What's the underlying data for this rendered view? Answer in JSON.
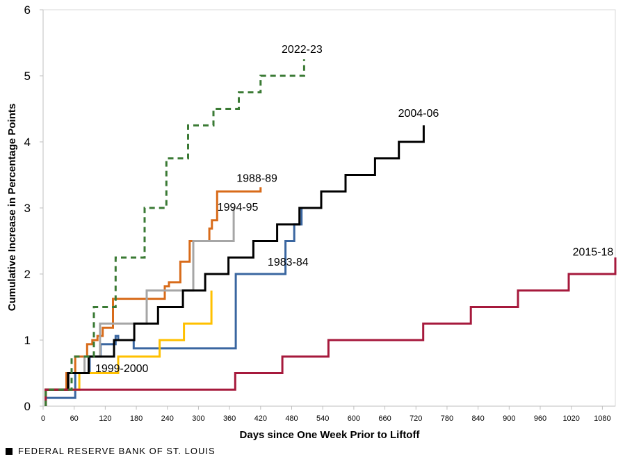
{
  "chart_data": {
    "type": "line",
    "title": "",
    "xlabel": "Days since One Week Prior to Liftoff",
    "ylabel": "Cumulative Increase in Percentage Points",
    "xlim": [
      0,
      1105
    ],
    "ylim": [
      0,
      6
    ],
    "xticks": [
      0,
      60,
      120,
      180,
      240,
      300,
      360,
      420,
      480,
      540,
      600,
      660,
      720,
      780,
      840,
      900,
      960,
      1020,
      1080
    ],
    "yticks": [
      0,
      1,
      2,
      3,
      4,
      5,
      6
    ],
    "grid": false,
    "series": [
      {
        "name": "1983-84",
        "color": "#3a66a0",
        "dashed": false,
        "label": {
          "text": "1983-84",
          "x": 473,
          "y": 2.19
        },
        "points": [
          [
            5,
            0
          ],
          [
            5,
            0.125
          ],
          [
            62,
            0.125
          ],
          [
            62,
            0.5
          ],
          [
            90,
            0.5
          ],
          [
            90,
            0.75
          ],
          [
            111,
            0.75
          ],
          [
            111,
            0.9375
          ],
          [
            140,
            0.9375
          ],
          [
            140,
            1.0625
          ],
          [
            145,
            1.0625
          ],
          [
            145,
            1.0
          ],
          [
            175,
            1.0
          ],
          [
            175,
            0.875
          ],
          [
            372,
            0.875
          ],
          [
            372,
            2.0
          ],
          [
            468,
            2.0
          ],
          [
            468,
            2.5
          ],
          [
            485,
            2.5
          ],
          [
            485,
            2.75
          ],
          [
            499,
            2.75
          ],
          [
            499,
            3.0
          ],
          [
            503,
            3.0
          ]
        ]
      },
      {
        "name": "1988-89",
        "color": "#d86b1a",
        "dashed": false,
        "label": {
          "text": "1988-89",
          "x": 413,
          "y": 3.46
        },
        "points": [
          [
            5,
            0
          ],
          [
            5,
            0.25
          ],
          [
            45,
            0.25
          ],
          [
            45,
            0.5
          ],
          [
            62,
            0.5
          ],
          [
            62,
            0.75
          ],
          [
            85,
            0.75
          ],
          [
            85,
            0.9375
          ],
          [
            95,
            0.9375
          ],
          [
            95,
            1.0
          ],
          [
            105,
            1.0
          ],
          [
            105,
            1.0625
          ],
          [
            115,
            1.0625
          ],
          [
            115,
            1.1875
          ],
          [
            135,
            1.1875
          ],
          [
            135,
            1.625
          ],
          [
            235,
            1.625
          ],
          [
            235,
            1.8125
          ],
          [
            243,
            1.8125
          ],
          [
            243,
            1.875
          ],
          [
            265,
            1.875
          ],
          [
            265,
            2.1875
          ],
          [
            283,
            2.1875
          ],
          [
            283,
            2.5
          ],
          [
            321,
            2.5
          ],
          [
            321,
            2.6875
          ],
          [
            326,
            2.6875
          ],
          [
            326,
            2.8125
          ],
          [
            336,
            2.8125
          ],
          [
            336,
            3.25
          ],
          [
            420,
            3.25
          ],
          [
            420,
            3.3125
          ]
        ]
      },
      {
        "name": "1994-95",
        "color": "#a6a6a6",
        "dashed": false,
        "label": {
          "text": "1994-95",
          "x": 376,
          "y": 3.02
        },
        "points": [
          [
            5,
            0
          ],
          [
            5,
            0.25
          ],
          [
            50,
            0.25
          ],
          [
            50,
            0.5
          ],
          [
            80,
            0.5
          ],
          [
            80,
            0.75
          ],
          [
            110,
            0.75
          ],
          [
            110,
            1.25
          ],
          [
            200,
            1.25
          ],
          [
            200,
            1.75
          ],
          [
            290,
            1.75
          ],
          [
            290,
            2.5
          ],
          [
            368,
            2.5
          ],
          [
            368,
            3.0
          ]
        ]
      },
      {
        "name": "1999-2000",
        "color": "#ffc000",
        "dashed": false,
        "label": {
          "text": "1999-2000",
          "x": 152,
          "y": 0.58
        },
        "points": [
          [
            5,
            0
          ],
          [
            5,
            0.25
          ],
          [
            70,
            0.25
          ],
          [
            70,
            0.5
          ],
          [
            145,
            0.5
          ],
          [
            145,
            0.75
          ],
          [
            225,
            0.75
          ],
          [
            225,
            1.0
          ],
          [
            272,
            1.0
          ],
          [
            272,
            1.25
          ],
          [
            325,
            1.25
          ],
          [
            325,
            1.75
          ]
        ]
      },
      {
        "name": "2004-06",
        "color": "#000000",
        "dashed": false,
        "label": {
          "text": "2004-06",
          "x": 725,
          "y": 4.44
        },
        "points": [
          [
            5,
            0
          ],
          [
            5,
            0.25
          ],
          [
            48,
            0.25
          ],
          [
            48,
            0.5
          ],
          [
            88,
            0.5
          ],
          [
            88,
            0.75
          ],
          [
            137,
            0.75
          ],
          [
            137,
            1.0
          ],
          [
            176,
            1.0
          ],
          [
            176,
            1.25
          ],
          [
            222,
            1.25
          ],
          [
            222,
            1.5
          ],
          [
            270,
            1.5
          ],
          [
            270,
            1.75
          ],
          [
            313,
            1.75
          ],
          [
            313,
            2.0
          ],
          [
            358,
            2.0
          ],
          [
            358,
            2.25
          ],
          [
            406,
            2.25
          ],
          [
            406,
            2.5
          ],
          [
            452,
            2.5
          ],
          [
            452,
            2.75
          ],
          [
            495,
            2.75
          ],
          [
            495,
            3.0
          ],
          [
            537,
            3.0
          ],
          [
            537,
            3.25
          ],
          [
            584,
            3.25
          ],
          [
            584,
            3.5
          ],
          [
            641,
            3.5
          ],
          [
            641,
            3.75
          ],
          [
            687,
            3.75
          ],
          [
            687,
            4.0
          ],
          [
            735,
            4.0
          ],
          [
            735,
            4.25
          ]
        ]
      },
      {
        "name": "2015-18",
        "color": "#a6193c",
        "dashed": false,
        "label": {
          "text": "2015-18",
          "x": 1062,
          "y": 2.34
        },
        "points": [
          [
            5,
            0
          ],
          [
            5,
            0.25
          ],
          [
            371,
            0.25
          ],
          [
            371,
            0.5
          ],
          [
            462,
            0.5
          ],
          [
            462,
            0.75
          ],
          [
            551,
            0.75
          ],
          [
            551,
            1.0
          ],
          [
            734,
            1.0
          ],
          [
            734,
            1.25
          ],
          [
            826,
            1.25
          ],
          [
            826,
            1.5
          ],
          [
            917,
            1.5
          ],
          [
            917,
            1.75
          ],
          [
            1015,
            1.75
          ],
          [
            1015,
            2.0
          ],
          [
            1105,
            2.0
          ],
          [
            1105,
            2.25
          ]
        ]
      },
      {
        "name": "2022-23",
        "color": "#3a7a34",
        "dashed": true,
        "label": {
          "text": "2022-23",
          "x": 500,
          "y": 5.41
        },
        "points": [
          [
            5,
            0
          ],
          [
            5,
            0.25
          ],
          [
            55,
            0.25
          ],
          [
            55,
            0.75
          ],
          [
            98,
            0.75
          ],
          [
            98,
            1.5
          ],
          [
            140,
            1.5
          ],
          [
            140,
            2.25
          ],
          [
            196,
            2.25
          ],
          [
            196,
            3.0
          ],
          [
            238,
            3.0
          ],
          [
            238,
            3.75
          ],
          [
            280,
            3.75
          ],
          [
            280,
            4.25
          ],
          [
            329,
            4.25
          ],
          [
            329,
            4.5
          ],
          [
            378,
            4.5
          ],
          [
            378,
            4.75
          ],
          [
            420,
            4.75
          ],
          [
            420,
            5.0
          ],
          [
            504,
            5.0
          ],
          [
            504,
            5.25
          ]
        ]
      }
    ]
  },
  "footer": {
    "source": "FEDERAL RESERVE BANK OF ST. LOUIS"
  }
}
